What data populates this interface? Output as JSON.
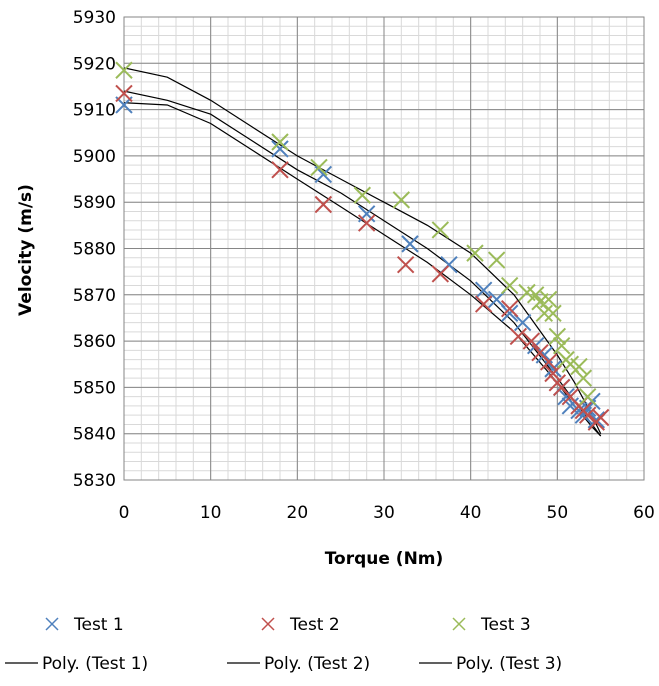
{
  "chart_data": {
    "type": "scatter",
    "title": "",
    "xlabel": "Torque (Nm)",
    "ylabel": "Velocity (m/s)",
    "xlim": [
      0,
      60
    ],
    "ylim": [
      5830,
      5930
    ],
    "x_ticks": [
      0,
      10,
      20,
      30,
      40,
      50,
      60
    ],
    "y_ticks": [
      5830,
      5840,
      5850,
      5860,
      5870,
      5880,
      5890,
      5900,
      5910,
      5920,
      5930
    ],
    "x_tick_labels": [
      "0",
      "10",
      "20",
      "30",
      "40",
      "50",
      "60"
    ],
    "y_tick_labels": [
      "5830",
      "5840",
      "5850",
      "5860",
      "5870",
      "5880",
      "5890",
      "5900",
      "5910",
      "5920",
      "5930"
    ],
    "grid": true,
    "legend_position": "bottom",
    "series": [
      {
        "name": "Test 1",
        "marker": "x",
        "color": "#4f81bd",
        "points": [
          [
            0,
            5911
          ],
          [
            18,
            5901.5
          ],
          [
            23,
            5896
          ],
          [
            28,
            5887.5
          ],
          [
            33,
            5881
          ],
          [
            37.5,
            5876.5
          ],
          [
            41.5,
            5871
          ],
          [
            43,
            5869
          ],
          [
            44.5,
            5866
          ],
          [
            46,
            5864
          ],
          [
            47.5,
            5859
          ],
          [
            48.5,
            5857
          ],
          [
            49.5,
            5854
          ],
          [
            50.5,
            5850
          ],
          [
            51,
            5848
          ],
          [
            51.5,
            5846
          ],
          [
            52.5,
            5845
          ],
          [
            53,
            5844
          ],
          [
            53.5,
            5845.5
          ],
          [
            54,
            5847
          ],
          [
            54.5,
            5843
          ]
        ]
      },
      {
        "name": "Test 2",
        "marker": "x",
        "color": "#c0504d",
        "points": [
          [
            0,
            5913.5
          ],
          [
            18,
            5897
          ],
          [
            23,
            5889.5
          ],
          [
            28,
            5885.5
          ],
          [
            32.5,
            5876.5
          ],
          [
            36.5,
            5874.5
          ],
          [
            41.5,
            5868
          ],
          [
            44.5,
            5867
          ],
          [
            45.5,
            5861
          ],
          [
            47,
            5860
          ],
          [
            48,
            5857.5
          ],
          [
            49,
            5855.5
          ],
          [
            49.5,
            5853
          ],
          [
            50,
            5851
          ],
          [
            50.5,
            5850
          ],
          [
            51.5,
            5848
          ],
          [
            52.5,
            5846
          ],
          [
            53,
            5845
          ],
          [
            53.5,
            5844
          ],
          [
            54.5,
            5842.5
          ],
          [
            55,
            5843.5
          ]
        ]
      },
      {
        "name": "Test 3",
        "marker": "x",
        "color": "#9bbb59",
        "points": [
          [
            0,
            5918.5
          ],
          [
            18,
            5903
          ],
          [
            22.5,
            5897.5
          ],
          [
            27.5,
            5891.5
          ],
          [
            32,
            5890.5
          ],
          [
            36.5,
            5884
          ],
          [
            40.5,
            5879
          ],
          [
            43,
            5877.5
          ],
          [
            44.5,
            5872
          ],
          [
            46.5,
            5870.5
          ],
          [
            47.5,
            5870
          ],
          [
            48,
            5868.5
          ],
          [
            48.5,
            5866
          ],
          [
            49,
            5869
          ],
          [
            49.5,
            5866
          ],
          [
            50,
            5861
          ],
          [
            50.5,
            5859
          ],
          [
            51,
            5856
          ],
          [
            51.5,
            5855
          ],
          [
            52.5,
            5854.5
          ],
          [
            53,
            5852
          ],
          [
            53.5,
            5848
          ]
        ]
      }
    ],
    "trendlines": [
      {
        "name": "Poly. (Test 1)",
        "color": "#000000",
        "points": [
          [
            0,
            5914
          ],
          [
            5,
            5912
          ],
          [
            10,
            5909
          ],
          [
            15,
            5903
          ],
          [
            20,
            5897
          ],
          [
            25,
            5892
          ],
          [
            30,
            5886
          ],
          [
            35,
            5880
          ],
          [
            40,
            5873
          ],
          [
            45,
            5864
          ],
          [
            50,
            5852
          ],
          [
            52,
            5847
          ],
          [
            54,
            5842
          ],
          [
            55,
            5839.5
          ]
        ]
      },
      {
        "name": "Poly. (Test 2)",
        "color": "#000000",
        "points": [
          [
            0,
            5911.5
          ],
          [
            5,
            5911
          ],
          [
            10,
            5907
          ],
          [
            15,
            5901
          ],
          [
            20,
            5895
          ],
          [
            25,
            5889
          ],
          [
            30,
            5883
          ],
          [
            35,
            5877
          ],
          [
            40,
            5870
          ],
          [
            45,
            5862
          ],
          [
            50,
            5851
          ],
          [
            52,
            5846
          ],
          [
            54,
            5841.5
          ],
          [
            55,
            5839.5
          ]
        ]
      },
      {
        "name": "Poly. (Test 3)",
        "color": "#000000",
        "points": [
          [
            0,
            5919
          ],
          [
            5,
            5917
          ],
          [
            10,
            5912
          ],
          [
            15,
            5906
          ],
          [
            20,
            5900
          ],
          [
            25,
            5895
          ],
          [
            30,
            5890
          ],
          [
            35,
            5885
          ],
          [
            40,
            5879
          ],
          [
            45,
            5870
          ],
          [
            50,
            5857
          ],
          [
            52,
            5851
          ],
          [
            54,
            5844
          ],
          [
            55,
            5840
          ]
        ]
      }
    ]
  }
}
